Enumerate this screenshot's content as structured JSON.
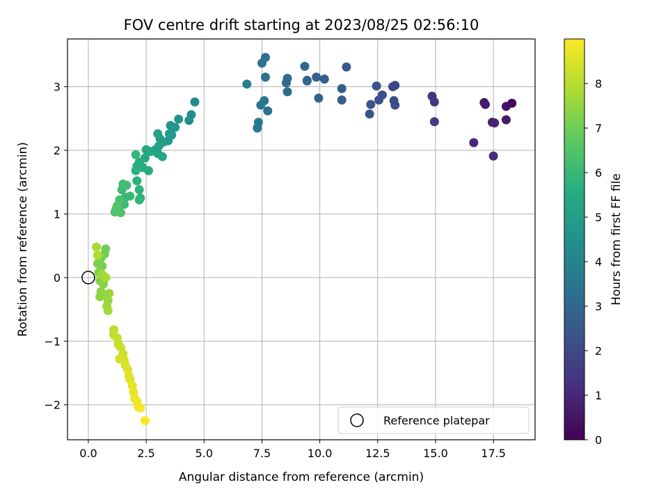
{
  "chart_data": {
    "type": "scatter",
    "title": "FOV centre drift starting at 2023/08/25 02:56:10",
    "xlabel": "Angular distance from reference (arcmin)",
    "ylabel": "Rotation from reference (arcmin)",
    "xlim": [
      -0.9,
      19.3
    ],
    "ylim": [
      -2.55,
      3.75
    ],
    "xticks": [
      0.0,
      2.5,
      5.0,
      7.5,
      10.0,
      12.5,
      15.0,
      17.5
    ],
    "xtick_labels": [
      "0.0",
      "2.5",
      "5.0",
      "7.5",
      "10.0",
      "12.5",
      "15.0",
      "17.5"
    ],
    "yticks": [
      -2,
      -1,
      0,
      1,
      2,
      3
    ],
    "ytick_labels": [
      "−2",
      "−1",
      "0",
      "1",
      "2",
      "3"
    ],
    "grid": true,
    "colorbar": {
      "label": "Hours from first FF file",
      "colormap": "viridis",
      "range": [
        0,
        9
      ],
      "ticks": [
        0,
        1,
        2,
        3,
        4,
        5,
        6,
        7,
        8
      ],
      "tick_labels": [
        "0",
        "1",
        "2",
        "3",
        "4",
        "5",
        "6",
        "7",
        "8"
      ]
    },
    "legend": {
      "position": "lower-right",
      "entries": [
        "Reference platepar"
      ]
    },
    "reference_point": {
      "x": 0.0,
      "y": 0.0,
      "label": "Reference platepar"
    },
    "series": [
      {
        "points": [
          [
            18.3,
            2.74,
            0.2
          ],
          [
            18.05,
            2.69,
            0.4
          ],
          [
            17.1,
            2.75,
            0.5
          ],
          [
            17.15,
            2.72,
            0.7
          ],
          [
            17.45,
            2.44,
            0.8
          ],
          [
            17.55,
            2.43,
            0.9
          ],
          [
            18.05,
            2.48,
            0.6
          ],
          [
            16.65,
            2.12,
            1.0
          ],
          [
            17.5,
            1.91,
            1.1
          ],
          [
            14.85,
            2.85,
            1.4
          ],
          [
            14.95,
            2.76,
            1.5
          ],
          [
            14.95,
            2.45,
            1.6
          ],
          [
            13.15,
            3.0,
            1.8
          ],
          [
            13.25,
            3.02,
            1.9
          ],
          [
            13.2,
            2.78,
            2.0
          ],
          [
            13.25,
            2.71,
            2.1
          ],
          [
            12.7,
            2.87,
            2.2
          ],
          [
            12.55,
            2.79,
            2.2
          ],
          [
            12.45,
            3.01,
            2.3
          ],
          [
            12.2,
            2.72,
            2.4
          ],
          [
            12.15,
            2.57,
            2.4
          ],
          [
            11.15,
            3.31,
            2.5
          ],
          [
            10.95,
            2.97,
            2.6
          ],
          [
            10.95,
            2.79,
            2.7
          ],
          [
            10.2,
            3.12,
            2.7
          ],
          [
            9.95,
            2.82,
            2.8
          ],
          [
            9.85,
            3.15,
            2.8
          ],
          [
            9.45,
            3.09,
            2.9
          ],
          [
            9.35,
            3.32,
            3.0
          ],
          [
            9.45,
            3.1,
            3.0
          ],
          [
            8.6,
            3.13,
            3.1
          ],
          [
            8.55,
            3.06,
            3.1
          ],
          [
            8.6,
            2.92,
            3.2
          ],
          [
            7.75,
            2.62,
            3.3
          ],
          [
            7.65,
            3.46,
            3.3
          ],
          [
            7.65,
            3.15,
            3.4
          ],
          [
            7.5,
            3.37,
            3.4
          ],
          [
            7.6,
            2.78,
            3.5
          ],
          [
            7.45,
            2.71,
            3.5
          ],
          [
            7.35,
            2.44,
            3.6
          ],
          [
            7.3,
            2.35,
            3.6
          ],
          [
            6.85,
            3.04,
            3.8
          ],
          [
            4.6,
            2.76,
            4.3
          ],
          [
            4.45,
            2.56,
            4.4
          ],
          [
            4.35,
            2.47,
            4.4
          ],
          [
            3.9,
            2.49,
            4.6
          ],
          [
            3.75,
            2.36,
            4.7
          ],
          [
            3.55,
            2.39,
            4.7
          ],
          [
            3.6,
            2.24,
            4.8
          ],
          [
            3.45,
            2.15,
            4.8
          ],
          [
            3.5,
            2.26,
            4.9
          ],
          [
            3.25,
            2.13,
            5.0
          ],
          [
            3.1,
            2.18,
            5.0
          ],
          [
            3.0,
            2.26,
            5.1
          ],
          [
            3.05,
            2.07,
            5.1
          ],
          [
            2.9,
            2.01,
            5.2
          ],
          [
            3.0,
            1.95,
            5.2
          ],
          [
            3.2,
            1.9,
            5.3
          ],
          [
            2.7,
            1.98,
            5.3
          ],
          [
            2.5,
            2.01,
            5.4
          ],
          [
            2.45,
            1.88,
            5.4
          ],
          [
            2.6,
            1.68,
            5.5
          ],
          [
            2.35,
            1.73,
            5.5
          ],
          [
            2.2,
            1.81,
            5.6
          ],
          [
            2.1,
            1.75,
            5.6
          ],
          [
            2.05,
            1.68,
            5.7
          ],
          [
            2.1,
            1.52,
            5.7
          ],
          [
            2.2,
            1.38,
            5.8
          ],
          [
            2.25,
            1.25,
            5.8
          ],
          [
            2.2,
            1.22,
            5.9
          ],
          [
            2.05,
            1.93,
            5.9
          ],
          [
            1.8,
            1.28,
            6.0
          ],
          [
            1.6,
            1.26,
            6.0
          ],
          [
            1.55,
            1.15,
            6.1
          ],
          [
            1.45,
            1.38,
            6.1
          ],
          [
            1.65,
            1.45,
            6.2
          ],
          [
            1.5,
            1.47,
            6.2
          ],
          [
            1.35,
            1.22,
            6.3
          ],
          [
            1.3,
            1.05,
            6.3
          ],
          [
            1.15,
            1.03,
            6.4
          ],
          [
            1.2,
            1.08,
            6.4
          ],
          [
            1.4,
            1.02,
            6.5
          ],
          [
            1.25,
            1.13,
            6.5
          ],
          [
            0.75,
            0.45,
            7.0
          ],
          [
            0.7,
            0.37,
            7.0
          ],
          [
            0.55,
            0.31,
            7.1
          ],
          [
            0.6,
            0.18,
            7.1
          ],
          [
            0.4,
            0.22,
            7.2
          ],
          [
            0.45,
            0.08,
            7.2
          ],
          [
            0.5,
            -0.05,
            7.3
          ],
          [
            0.65,
            -0.1,
            7.3
          ],
          [
            0.55,
            -0.22,
            7.4
          ],
          [
            0.5,
            -0.3,
            7.4
          ],
          [
            0.7,
            -0.28,
            7.5
          ],
          [
            0.85,
            -0.36,
            7.5
          ],
          [
            0.9,
            -0.25,
            7.6
          ],
          [
            0.8,
            -0.45,
            7.6
          ],
          [
            0.85,
            -0.52,
            7.7
          ],
          [
            0.6,
            0.05,
            7.7
          ],
          [
            0.75,
            0.0,
            7.8
          ],
          [
            0.35,
            0.48,
            7.8
          ],
          [
            0.4,
            0.35,
            7.9
          ],
          [
            1.1,
            -0.82,
            8.1
          ],
          [
            1.1,
            -0.9,
            8.1
          ],
          [
            1.25,
            -0.95,
            8.2
          ],
          [
            1.3,
            -1.05,
            8.2
          ],
          [
            1.4,
            -1.1,
            8.3
          ],
          [
            1.5,
            -1.2,
            8.3
          ],
          [
            1.35,
            -1.28,
            8.4
          ],
          [
            1.55,
            -1.3,
            8.4
          ],
          [
            1.6,
            -1.38,
            8.5
          ],
          [
            1.7,
            -1.45,
            8.5
          ],
          [
            1.75,
            -1.55,
            8.6
          ],
          [
            1.8,
            -1.6,
            8.6
          ],
          [
            1.9,
            -1.7,
            8.7
          ],
          [
            1.95,
            -1.8,
            8.7
          ],
          [
            2.0,
            -1.9,
            8.8
          ],
          [
            2.1,
            -1.95,
            8.8
          ],
          [
            2.15,
            -2.03,
            8.85
          ],
          [
            2.25,
            -2.05,
            8.9
          ],
          [
            2.45,
            -2.25,
            8.95
          ]
        ]
      }
    ]
  }
}
